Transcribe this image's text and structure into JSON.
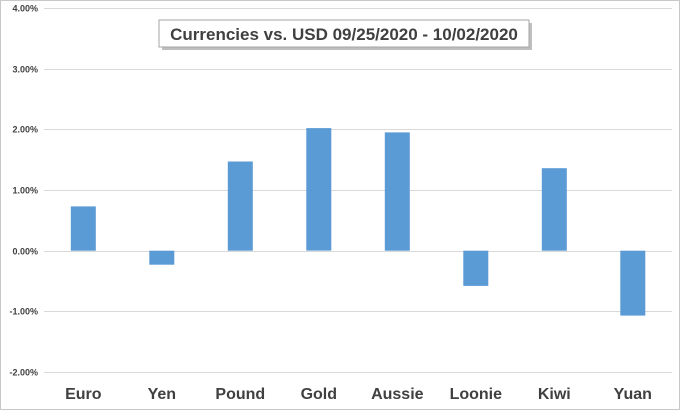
{
  "chart_data": {
    "type": "bar",
    "title": "Currencies vs. USD 09/25/2020 - 10/02/2020",
    "categories": [
      "Euro",
      "Yen",
      "Pound",
      "Gold",
      "Aussie",
      "Loonie",
      "Kiwi",
      "Yuan"
    ],
    "values": [
      0.73,
      -0.23,
      1.47,
      2.02,
      1.95,
      -0.58,
      1.36,
      -1.07
    ],
    "ylim": [
      -2,
      4
    ],
    "yticks": [
      4,
      3,
      2,
      1,
      0,
      -1,
      -2
    ],
    "ytick_labels": [
      "4.00%",
      "3.00%",
      "2.00%",
      "1.00%",
      "0.00%",
      "-1.00%",
      "-2.00%"
    ],
    "grid": true,
    "xlabel": "",
    "ylabel": "",
    "colors": {
      "bar": "#5b9bd5",
      "grid": "#d9d9d9",
      "text": "#404040"
    }
  }
}
